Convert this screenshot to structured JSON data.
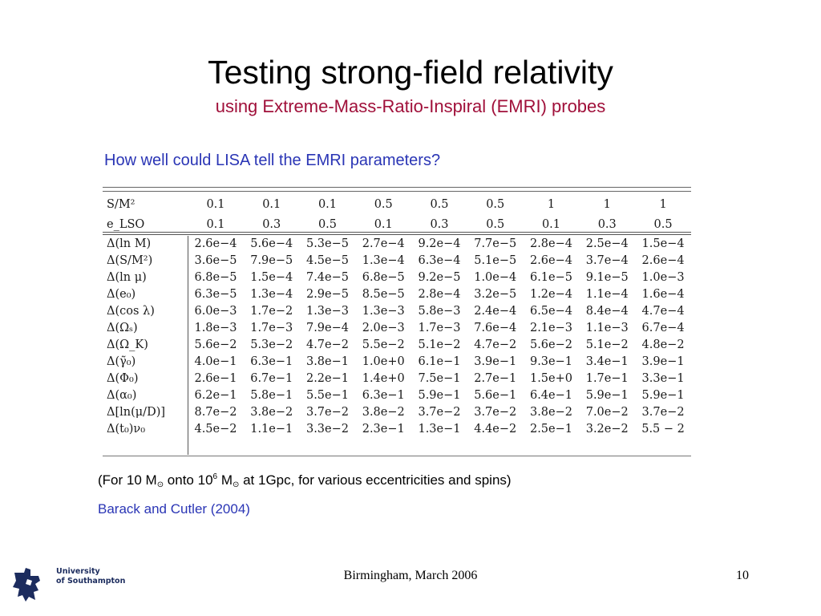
{
  "slide": {
    "title": "Testing strong-field relativity",
    "subtitle": "using Extreme-Mass-Ratio-Inspiral (EMRI) probes",
    "question": "How well could LISA tell the EMRI parameters?",
    "note": {
      "prefix": "(For 10 M",
      "sun1": "⊙",
      "mid": " onto 10",
      "exp": "6",
      "mid2": " M",
      "sun2": "⊙",
      "suffix": " at 1Gpc, for various eccentricities and spins)"
    },
    "citation": "Barack and Cutler (2004)",
    "footer": "Birmingham, March 2006",
    "page_number": "10",
    "logo": {
      "line1": "University",
      "line2": "of Southampton",
      "color": "#1c2c5e"
    }
  },
  "table": {
    "header_rows": [
      {
        "label": "S/M²",
        "values": [
          "0.1",
          "0.1",
          "0.1",
          "0.5",
          "0.5",
          "0.5",
          "1",
          "1",
          "1"
        ]
      },
      {
        "label": "e_LSO",
        "values": [
          "0.1",
          "0.3",
          "0.5",
          "0.1",
          "0.3",
          "0.5",
          "0.1",
          "0.3",
          "0.5"
        ]
      }
    ],
    "rows": [
      {
        "label": "Δ(ln M)",
        "values": [
          "2.6e−4",
          "5.6e−4",
          "5.3e−5",
          "2.7e−4",
          "9.2e−4",
          "7.7e−5",
          "2.8e−4",
          "2.5e−4",
          "1.5e−4"
        ]
      },
      {
        "label": "Δ(S/M²)",
        "values": [
          "3.6e−5",
          "7.9e−5",
          "4.5e−5",
          "1.3e−4",
          "6.3e−4",
          "5.1e−5",
          "2.6e−4",
          "3.7e−4",
          "2.6e−4"
        ]
      },
      {
        "label": "Δ(ln μ)",
        "values": [
          "6.8e−5",
          "1.5e−4",
          "7.4e−5",
          "6.8e−5",
          "9.2e−5",
          "1.0e−4",
          "6.1e−5",
          "9.1e−5",
          "1.0e−3"
        ]
      },
      {
        "label": "Δ(e₀)",
        "values": [
          "6.3e−5",
          "1.3e−4",
          "2.9e−5",
          "8.5e−5",
          "2.8e−4",
          "3.2e−5",
          "1.2e−4",
          "1.1e−4",
          "1.6e−4"
        ]
      },
      {
        "label": "Δ(cos λ)",
        "values": [
          "6.0e−3",
          "1.7e−2",
          "1.3e−3",
          "1.3e−3",
          "5.8e−3",
          "2.4e−4",
          "6.5e−4",
          "8.4e−4",
          "4.7e−4"
        ]
      },
      {
        "label": "Δ(Ωₛ)",
        "values": [
          "1.8e−3",
          "1.7e−3",
          "7.9e−4",
          "2.0e−3",
          "1.7e−3",
          "7.6e−4",
          "2.1e−3",
          "1.1e−3",
          "6.7e−4"
        ]
      },
      {
        "label": "Δ(Ω_K)",
        "values": [
          "5.6e−2",
          "5.3e−2",
          "4.7e−2",
          "5.5e−2",
          "5.1e−2",
          "4.7e−2",
          "5.6e−2",
          "5.1e−2",
          "4.8e−2"
        ]
      },
      {
        "label": "Δ(γ̃₀)",
        "values": [
          "4.0e−1",
          "6.3e−1",
          "3.8e−1",
          "1.0e+0",
          "6.1e−1",
          "3.9e−1",
          "9.3e−1",
          "3.4e−1",
          "3.9e−1"
        ]
      },
      {
        "label": "Δ(Φ₀)",
        "values": [
          "2.6e−1",
          "6.7e−1",
          "2.2e−1",
          "1.4e+0",
          "7.5e−1",
          "2.7e−1",
          "1.5e+0",
          "1.7e−1",
          "3.3e−1"
        ]
      },
      {
        "label": "Δ(α₀)",
        "values": [
          "6.2e−1",
          "5.8e−1",
          "5.5e−1",
          "6.3e−1",
          "5.9e−1",
          "5.6e−1",
          "6.4e−1",
          "5.9e−1",
          "5.9e−1"
        ]
      },
      {
        "label": "Δ[ln(μ/D)]",
        "values": [
          "8.7e−2",
          "3.8e−2",
          "3.7e−2",
          "3.8e−2",
          "3.7e−2",
          "3.7e−2",
          "3.8e−2",
          "7.0e−2",
          "3.7e−2"
        ]
      },
      {
        "label": "Δ(t₀)ν₀",
        "values": [
          "4.5e−2",
          "1.1e−1",
          "3.3e−2",
          "2.3e−1",
          "1.3e−1",
          "4.4e−2",
          "2.5e−1",
          "3.2e−2",
          "5.5 − 2"
        ]
      }
    ]
  }
}
